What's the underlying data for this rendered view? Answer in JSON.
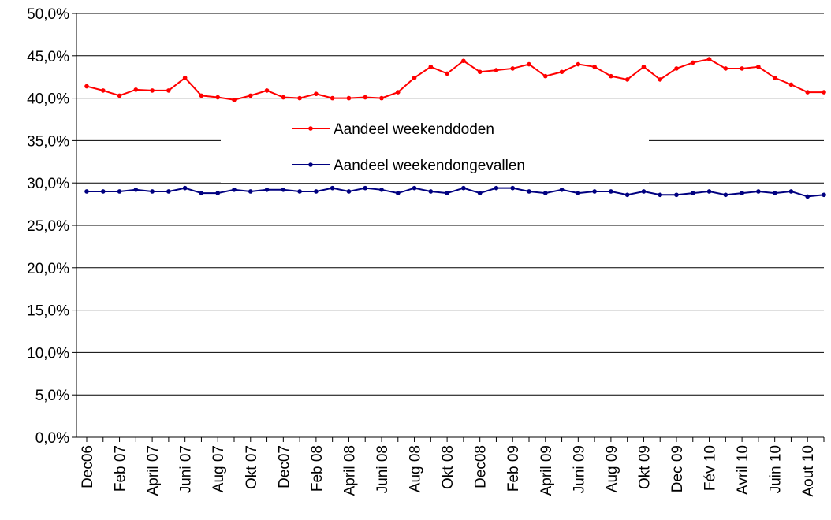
{
  "chart_data": {
    "type": "line",
    "categories": [
      "Dec06",
      null,
      "Feb 07",
      null,
      "April 07",
      null,
      "Juni 07",
      null,
      "Aug 07",
      null,
      "Okt 07",
      null,
      "Dec07",
      null,
      "Feb 08",
      null,
      "April 08",
      null,
      "Juni 08",
      null,
      "Aug 08",
      null,
      "Okt 08",
      null,
      "Dec08",
      null,
      "Feb 09",
      null,
      "April 09",
      null,
      "Juni 09",
      null,
      "Aug 09",
      null,
      "Okt 09",
      null,
      "Dec 09",
      null,
      "Fév 10",
      null,
      "Avril 10",
      null,
      "Juin 10",
      null,
      "Aout 10",
      null
    ],
    "series": [
      {
        "name": "Aandeel weekenddoden",
        "color": "#ff0000",
        "values": [
          41.4,
          40.9,
          40.3,
          41.0,
          40.9,
          40.9,
          42.4,
          40.3,
          40.1,
          39.8,
          40.3,
          40.9,
          40.1,
          40.0,
          40.5,
          40.0,
          40.0,
          40.1,
          40.0,
          40.7,
          42.4,
          43.7,
          42.9,
          44.4,
          43.1,
          43.3,
          43.5,
          44.0,
          42.6,
          43.1,
          44.0,
          43.7,
          42.6,
          42.2,
          43.7,
          42.2,
          43.5,
          44.2,
          44.6,
          43.5,
          43.5,
          43.7,
          42.4,
          41.6,
          40.7,
          40.7
        ]
      },
      {
        "name": "Aandeel weekendongevallen",
        "color": "#000080",
        "values": [
          29.0,
          29.0,
          29.0,
          29.2,
          29.0,
          29.0,
          29.4,
          28.8,
          28.8,
          29.2,
          29.0,
          29.2,
          29.2,
          29.0,
          29.0,
          29.4,
          29.0,
          29.4,
          29.2,
          28.8,
          29.4,
          29.0,
          28.8,
          29.4,
          28.8,
          29.4,
          29.4,
          29.0,
          28.8,
          29.2,
          28.8,
          29.0,
          29.0,
          28.6,
          29.0,
          28.6,
          28.6,
          28.8,
          29.0,
          28.6,
          28.8,
          29.0,
          28.8,
          29.0,
          28.4,
          28.6
        ]
      }
    ],
    "ylim": [
      0,
      50
    ],
    "yticks": [
      {
        "value": 0,
        "label": "0,0%"
      },
      {
        "value": 5,
        "label": "5,0%"
      },
      {
        "value": 10,
        "label": "10,0%"
      },
      {
        "value": 15,
        "label": "15,0%"
      },
      {
        "value": 20,
        "label": "20,0%"
      },
      {
        "value": 25,
        "label": "25,0%"
      },
      {
        "value": 30,
        "label": "30,0%"
      },
      {
        "value": 35,
        "label": "35,0%"
      },
      {
        "value": 40,
        "label": "40,0%"
      },
      {
        "value": 45,
        "label": "45,0%"
      },
      {
        "value": 50,
        "label": "50,0%"
      }
    ],
    "grid": true
  }
}
